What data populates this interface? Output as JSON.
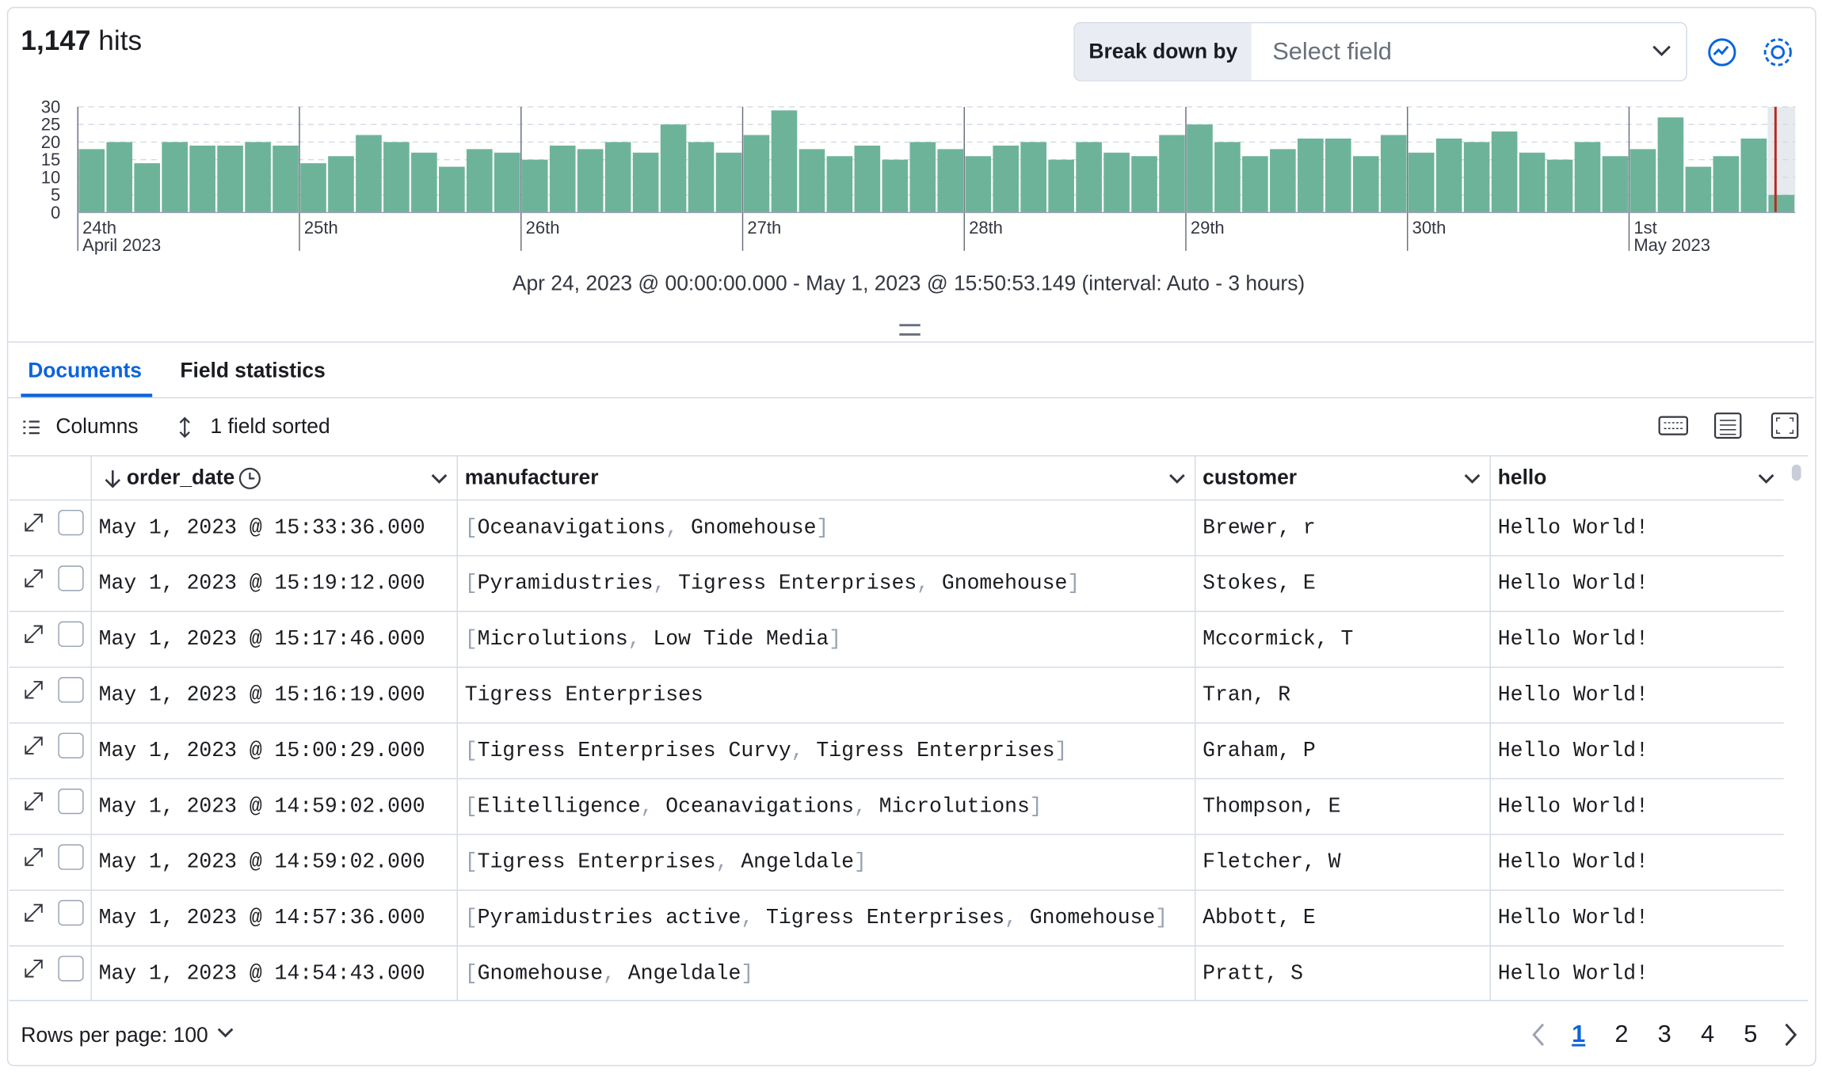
{
  "header": {
    "hits_count": "1,147",
    "hits_label": "hits",
    "breakdown_label": "Break down by",
    "breakdown_placeholder": "Select field"
  },
  "chart_data": {
    "type": "bar",
    "color": "#6db39a",
    "ylim": [
      0,
      30
    ],
    "yticks": [
      0,
      5,
      10,
      15,
      20,
      25,
      30
    ],
    "grid": true,
    "xlim": [
      0,
      62
    ],
    "values": [
      18,
      20,
      14,
      20,
      19,
      19,
      20,
      19,
      14,
      16,
      22,
      20,
      17,
      13,
      18,
      17,
      15,
      19,
      18,
      20,
      17,
      25,
      20,
      17,
      22,
      29,
      18,
      16,
      19,
      15,
      20,
      18,
      16,
      19,
      20,
      15,
      20,
      17,
      16,
      22,
      25,
      20,
      16,
      18,
      21,
      21,
      16,
      22,
      17,
      21,
      20,
      23,
      17,
      15,
      20,
      16,
      18,
      27,
      13,
      16,
      21,
      5
    ],
    "xticks": [
      {
        "value": 0,
        "label": "24th"
      },
      {
        "value": 8,
        "label": "25th"
      },
      {
        "value": 16,
        "label": "26th"
      },
      {
        "value": 24,
        "label": "27th"
      },
      {
        "value": 32,
        "label": "28th"
      },
      {
        "value": 40,
        "label": "29th"
      },
      {
        "value": 48,
        "label": "30th"
      },
      {
        "value": 56,
        "label": "1st"
      }
    ],
    "xtick_sublabels": [
      {
        "value": 0,
        "label": "April 2023"
      },
      {
        "value": 56,
        "label": "May 2023"
      }
    ],
    "caption": "Apr 24, 2023 @ 00:00:00.000 - May 1, 2023 @ 15:50:53.149 (interval: Auto - 3 hours)"
  },
  "tabs": [
    "Documents",
    "Field statistics"
  ],
  "toolbar": {
    "columns": "Columns",
    "sorted": "1 field sorted"
  },
  "table": {
    "columns": [
      "order_date",
      "manufacturer",
      "customer",
      "hello"
    ],
    "rows": [
      [
        "May 1, 2023 @ 15:33:36.000",
        [
          "Oceanavigations",
          "Gnomehouse"
        ],
        "Brewer, r",
        "Hello World!"
      ],
      [
        "May 1, 2023 @ 15:19:12.000",
        [
          "Pyramidustries",
          "Tigress Enterprises",
          "Gnomehouse"
        ],
        "Stokes, E",
        "Hello World!"
      ],
      [
        "May 1, 2023 @ 15:17:46.000",
        [
          "Microlutions",
          "Low Tide Media"
        ],
        "Mccormick, T",
        "Hello World!"
      ],
      [
        "May 1, 2023 @ 15:16:19.000",
        "Tigress Enterprises",
        "Tran, R",
        "Hello World!"
      ],
      [
        "May 1, 2023 @ 15:00:29.000",
        [
          "Tigress Enterprises Curvy",
          "Tigress Enterprises"
        ],
        "Graham, P",
        "Hello World!"
      ],
      [
        "May 1, 2023 @ 14:59:02.000",
        [
          "Elitelligence",
          "Oceanavigations",
          "Microlutions"
        ],
        "Thompson, E",
        "Hello World!"
      ],
      [
        "May 1, 2023 @ 14:59:02.000",
        [
          "Tigress Enterprises",
          "Angeldale"
        ],
        "Fletcher, W",
        "Hello World!"
      ],
      [
        "May 1, 2023 @ 14:57:36.000",
        [
          "Pyramidustries active",
          "Tigress Enterprises",
          "Gnomehouse"
        ],
        "Abbott, E",
        "Hello World!"
      ],
      [
        "May 1, 2023 @ 14:54:43.000",
        [
          "Gnomehouse",
          "Angeldale"
        ],
        "Pratt, S",
        "Hello World!"
      ]
    ]
  },
  "footer": {
    "rows_per_page": "Rows per page: 100",
    "pages": [
      "1",
      "2",
      "3",
      "4",
      "5"
    ]
  }
}
